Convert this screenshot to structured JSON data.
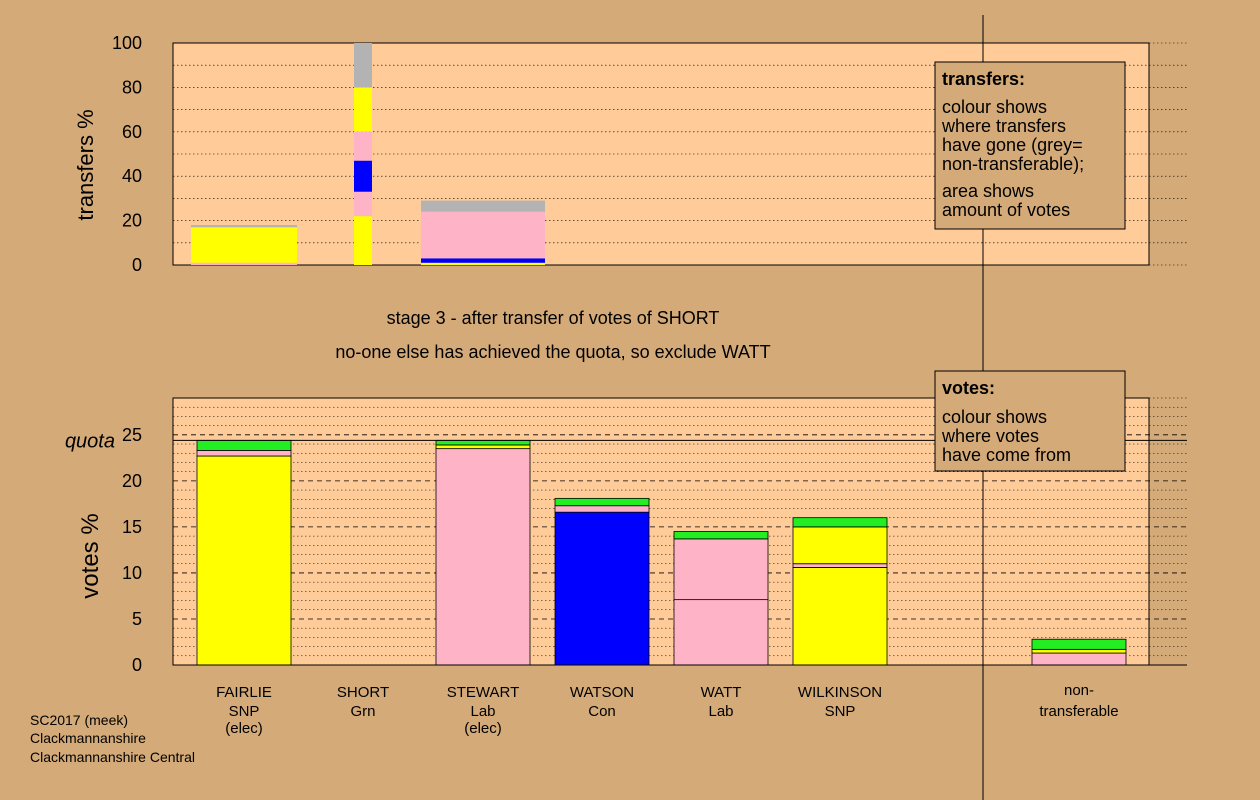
{
  "colors": {
    "background": "#d4aa78",
    "panel": "#ffcc99",
    "legend_box": "#d4aa78",
    "SNP": "#ffff00",
    "Lab": "#ffb3c6",
    "Con": "#0000ff",
    "Grn": "#22ee22",
    "nontransferable": "#b3b3b3"
  },
  "captions": {
    "stage": "stage 3 - after transfer of votes of SHORT",
    "action": "no-one else has achieved the quota, so exclude WATT"
  },
  "footer": {
    "line1": "SC2017 (meek)",
    "line2": "Clackmannanshire",
    "line3": "Clackmannanshire Central"
  },
  "legend_transfers": {
    "title": "transfers:",
    "para1": [
      "colour shows",
      "where transfers",
      "have gone (grey=",
      "non-transferable);"
    ],
    "para2": [
      "area shows",
      "amount of votes"
    ]
  },
  "legend_votes": {
    "title": "votes:",
    "para1": [
      "colour shows",
      "where votes",
      "have come from"
    ]
  },
  "chart_data": [
    {
      "type": "bar",
      "panel": "transfers",
      "ylabel": "transfers %",
      "ylim": [
        0,
        100
      ],
      "yticks": [
        0,
        20,
        40,
        60,
        80,
        100
      ],
      "bars": [
        {
          "candidate": "FAIRLIE",
          "width_pct": 1.6,
          "segments": [
            {
              "party": "Lab",
              "value": 1
            },
            {
              "party": "SNP",
              "value": 16
            },
            {
              "party": "nontransferable",
              "value": 1
            }
          ]
        },
        {
          "candidate": "SHORT",
          "width_pct": 0.3,
          "segments": [
            {
              "party": "SNP",
              "value": 22
            },
            {
              "party": "Lab",
              "value": 11
            },
            {
              "party": "Con",
              "value": 14
            },
            {
              "party": "Lab",
              "value": 13
            },
            {
              "party": "SNP",
              "value": 20
            },
            {
              "party": "nontransferable",
              "value": 20
            }
          ]
        },
        {
          "candidate": "STEWART",
          "width_pct": 1.9,
          "segments": [
            {
              "party": "SNP",
              "value": 1
            },
            {
              "party": "Con",
              "value": 2
            },
            {
              "party": "Lab",
              "value": 21
            },
            {
              "party": "nontransferable",
              "value": 5
            }
          ]
        }
      ]
    },
    {
      "type": "bar",
      "panel": "votes",
      "ylabel": "votes %",
      "ylim": [
        0,
        29
      ],
      "yticks": [
        0,
        5,
        10,
        15,
        20,
        25
      ],
      "quota": 24.4,
      "quota_label": "quota",
      "candidates": [
        {
          "name": "FAIRLIE",
          "party": "SNP",
          "note": "(elec)",
          "segments": [
            {
              "party": "SNP",
              "value": 22.7
            },
            {
              "party": "Lab",
              "value": 0.6
            },
            {
              "party": "Grn",
              "value": 1.1
            }
          ]
        },
        {
          "name": "SHORT",
          "party": "Grn",
          "note": "",
          "segments": []
        },
        {
          "name": "STEWART",
          "party": "Lab",
          "note": "(elec)",
          "segments": [
            {
              "party": "Lab",
              "value": 23.5
            },
            {
              "party": "SNP",
              "value": 0.4
            },
            {
              "party": "Grn",
              "value": 0.5
            }
          ]
        },
        {
          "name": "WATSON",
          "party": "Con",
          "note": "",
          "segments": [
            {
              "party": "Con",
              "value": 16.6
            },
            {
              "party": "Lab",
              "value": 0.7
            },
            {
              "party": "Grn",
              "value": 0.8
            }
          ]
        },
        {
          "name": "WATT",
          "party": "Lab",
          "note": "",
          "segments": [
            {
              "party": "Lab",
              "value": 7.1
            },
            {
              "party": "Lab",
              "value": 6.6
            },
            {
              "party": "Grn",
              "value": 0.8
            }
          ]
        },
        {
          "name": "WILKINSON",
          "party": "SNP",
          "note": "",
          "segments": [
            {
              "party": "SNP",
              "value": 10.6
            },
            {
              "party": "Lab",
              "value": 0.4
            },
            {
              "party": "SNP",
              "value": 4.0
            },
            {
              "party": "Grn",
              "value": 1.0
            }
          ]
        }
      ],
      "nontransferable": {
        "label1": "non-",
        "label2": "transferable",
        "segments": [
          {
            "party": "Lab",
            "value": 1.3
          },
          {
            "party": "SNP",
            "value": 0.4
          },
          {
            "party": "Grn",
            "value": 1.1
          }
        ]
      }
    }
  ]
}
